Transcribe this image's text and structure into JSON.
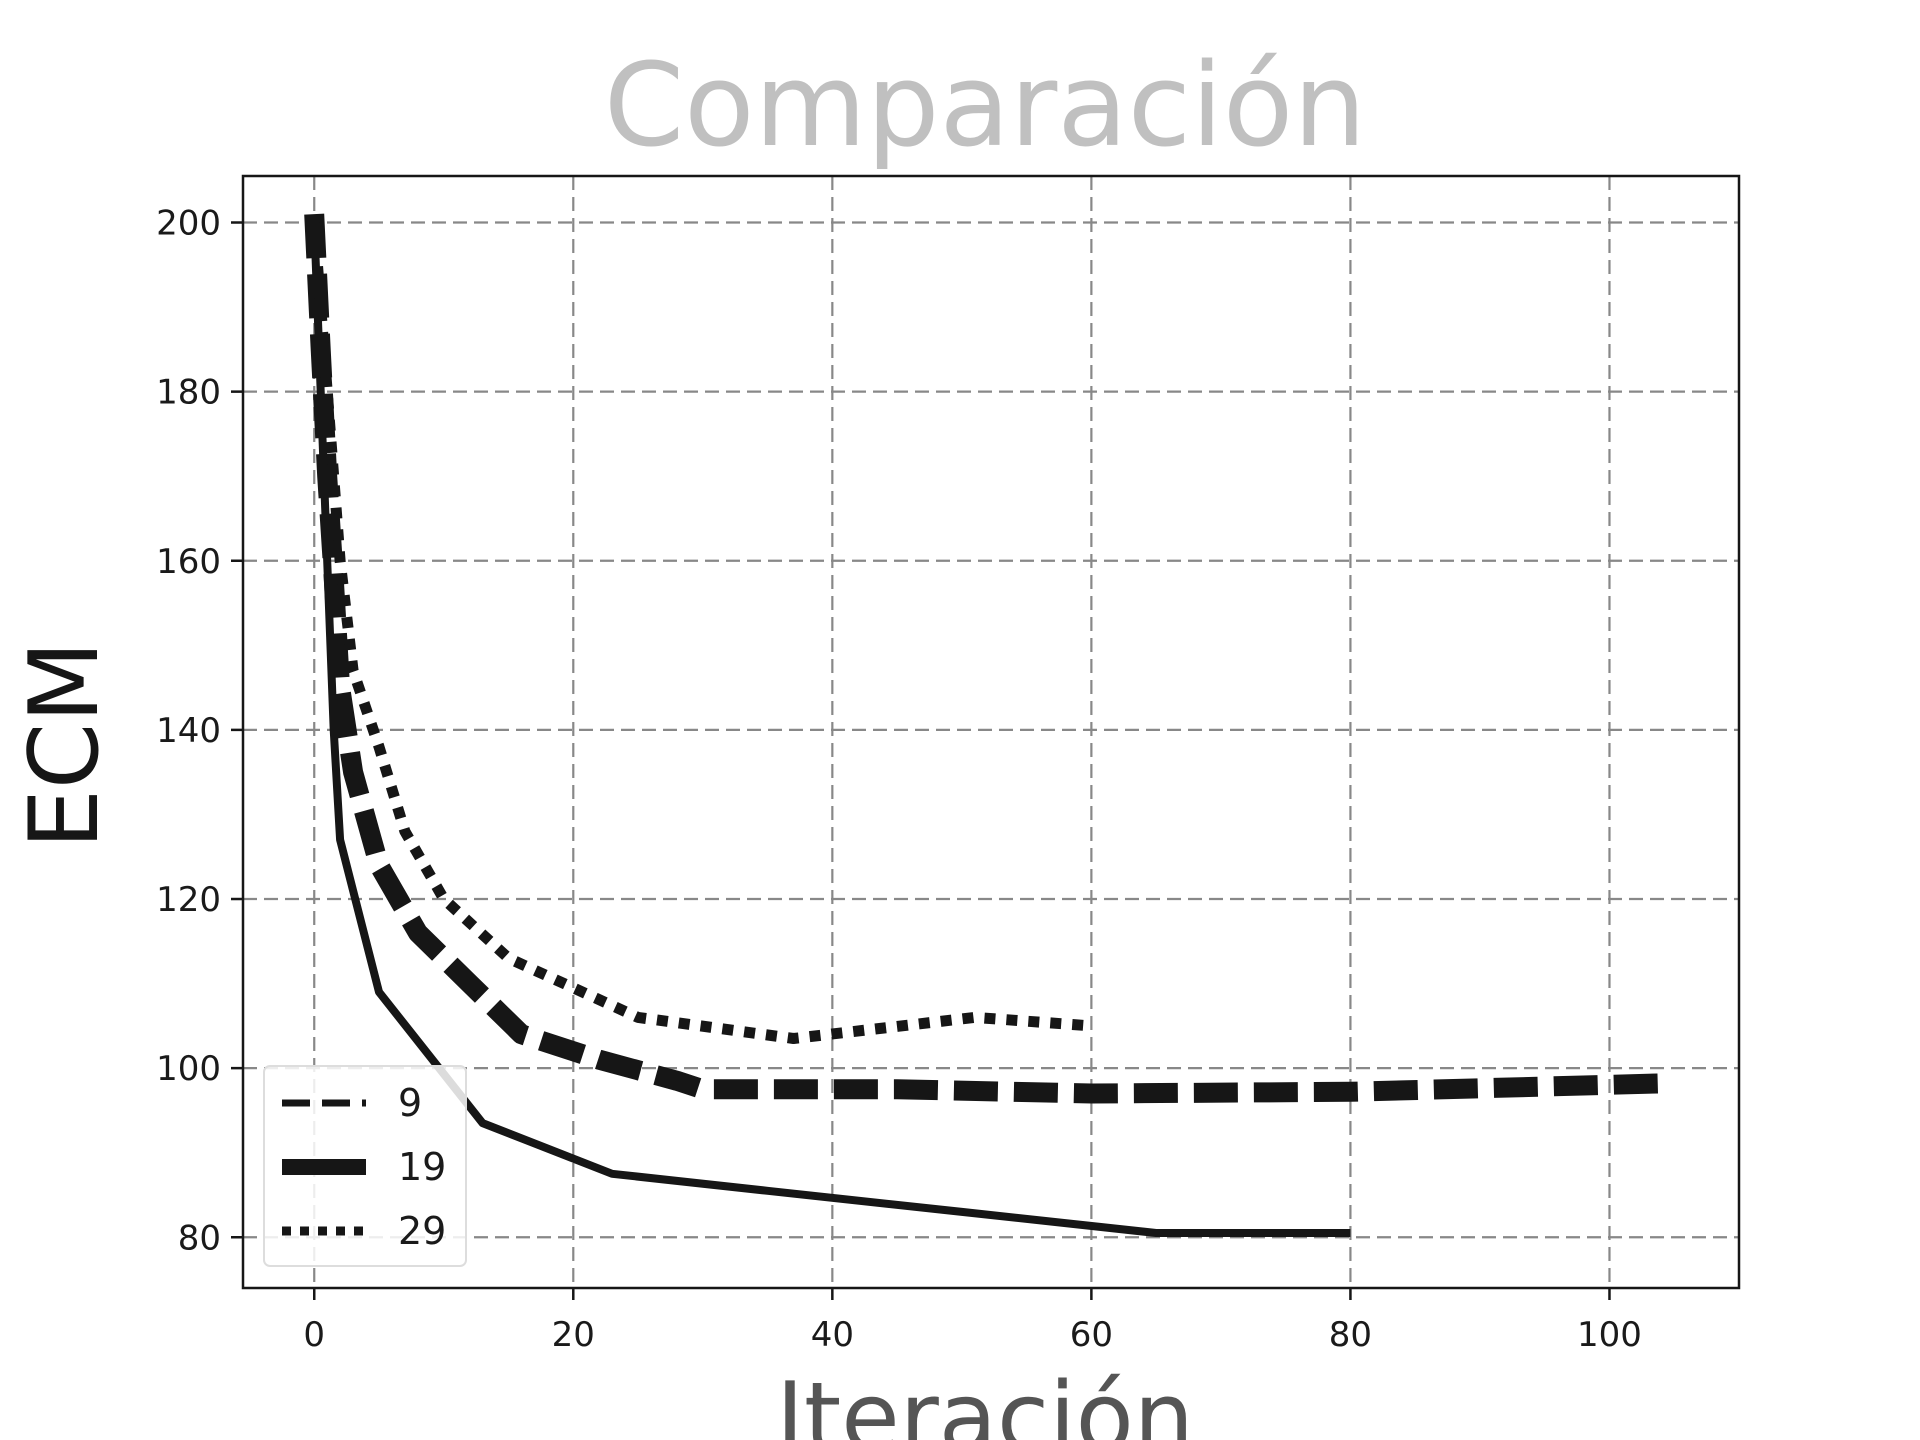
{
  "chart_data": {
    "type": "line",
    "title": "Comparación",
    "xlabel": "Iteración",
    "ylabel": "ECM",
    "xlim": [
      -5.5,
      110
    ],
    "ylim": [
      74,
      205.5
    ],
    "x_ticks": [
      0,
      20,
      40,
      60,
      80,
      100
    ],
    "y_ticks": [
      80,
      100,
      120,
      140,
      160,
      180,
      200
    ],
    "grid": true,
    "legend_position": "lower-left",
    "colors": {
      "line": "#161616",
      "title": "#c0c0c0",
      "xlabel": "#555555",
      "ylabel": "#161616",
      "grid": "#888888"
    },
    "series": [
      {
        "name": "9",
        "style": "solid",
        "points": [
          [
            0,
            200
          ],
          [
            1,
            160
          ],
          [
            1.5,
            140
          ],
          [
            2,
            127
          ],
          [
            5,
            109
          ],
          [
            13,
            93.5
          ],
          [
            23,
            87.5
          ],
          [
            35,
            85.5
          ],
          [
            50,
            83
          ],
          [
            65,
            80.5
          ],
          [
            80,
            80.5
          ]
        ]
      },
      {
        "name": "19",
        "style": "dashed",
        "points": [
          [
            0,
            201
          ],
          [
            0.5,
            185
          ],
          [
            1,
            170
          ],
          [
            1.5,
            158
          ],
          [
            2,
            145
          ],
          [
            3,
            135
          ],
          [
            5,
            124
          ],
          [
            8,
            116
          ],
          [
            12,
            110
          ],
          [
            16,
            104
          ],
          [
            22,
            101
          ],
          [
            28,
            98.5
          ],
          [
            30,
            97.5
          ],
          [
            45,
            97.5
          ],
          [
            60,
            97
          ],
          [
            80,
            97.2
          ],
          [
            104,
            98.2
          ]
        ]
      },
      {
        "name": "29",
        "style": "dotted",
        "points": [
          [
            0,
            200
          ],
          [
            1,
            180
          ],
          [
            2,
            160
          ],
          [
            3,
            147
          ],
          [
            5,
            138
          ],
          [
            7,
            128
          ],
          [
            10,
            120
          ],
          [
            15,
            113
          ],
          [
            25,
            106
          ],
          [
            37,
            103.5
          ],
          [
            51,
            106
          ],
          [
            60,
            105
          ]
        ]
      }
    ]
  }
}
